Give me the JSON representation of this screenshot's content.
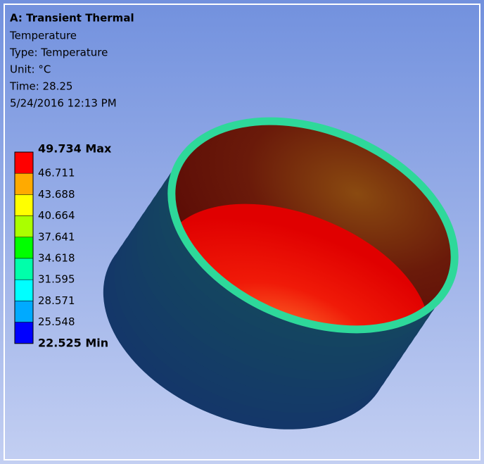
{
  "header": {
    "title": "A: Transient Thermal",
    "lines": [
      "Temperature",
      "Type: Temperature",
      "Unit: °C",
      "Time: 28.25",
      "5/24/2016 12:13 PM"
    ]
  },
  "legend": {
    "labels": [
      "49.734 Max",
      "46.711",
      "43.688",
      "40.664",
      "37.641",
      "34.618",
      "31.595",
      "28.571",
      "25.548",
      "22.525 Min"
    ],
    "colors": [
      "#ff0000",
      "#ffaa00",
      "#ffff00",
      "#aaff00",
      "#00ff00",
      "#00ffaa",
      "#00ffff",
      "#00aaff",
      "#0000ff"
    ]
  }
}
